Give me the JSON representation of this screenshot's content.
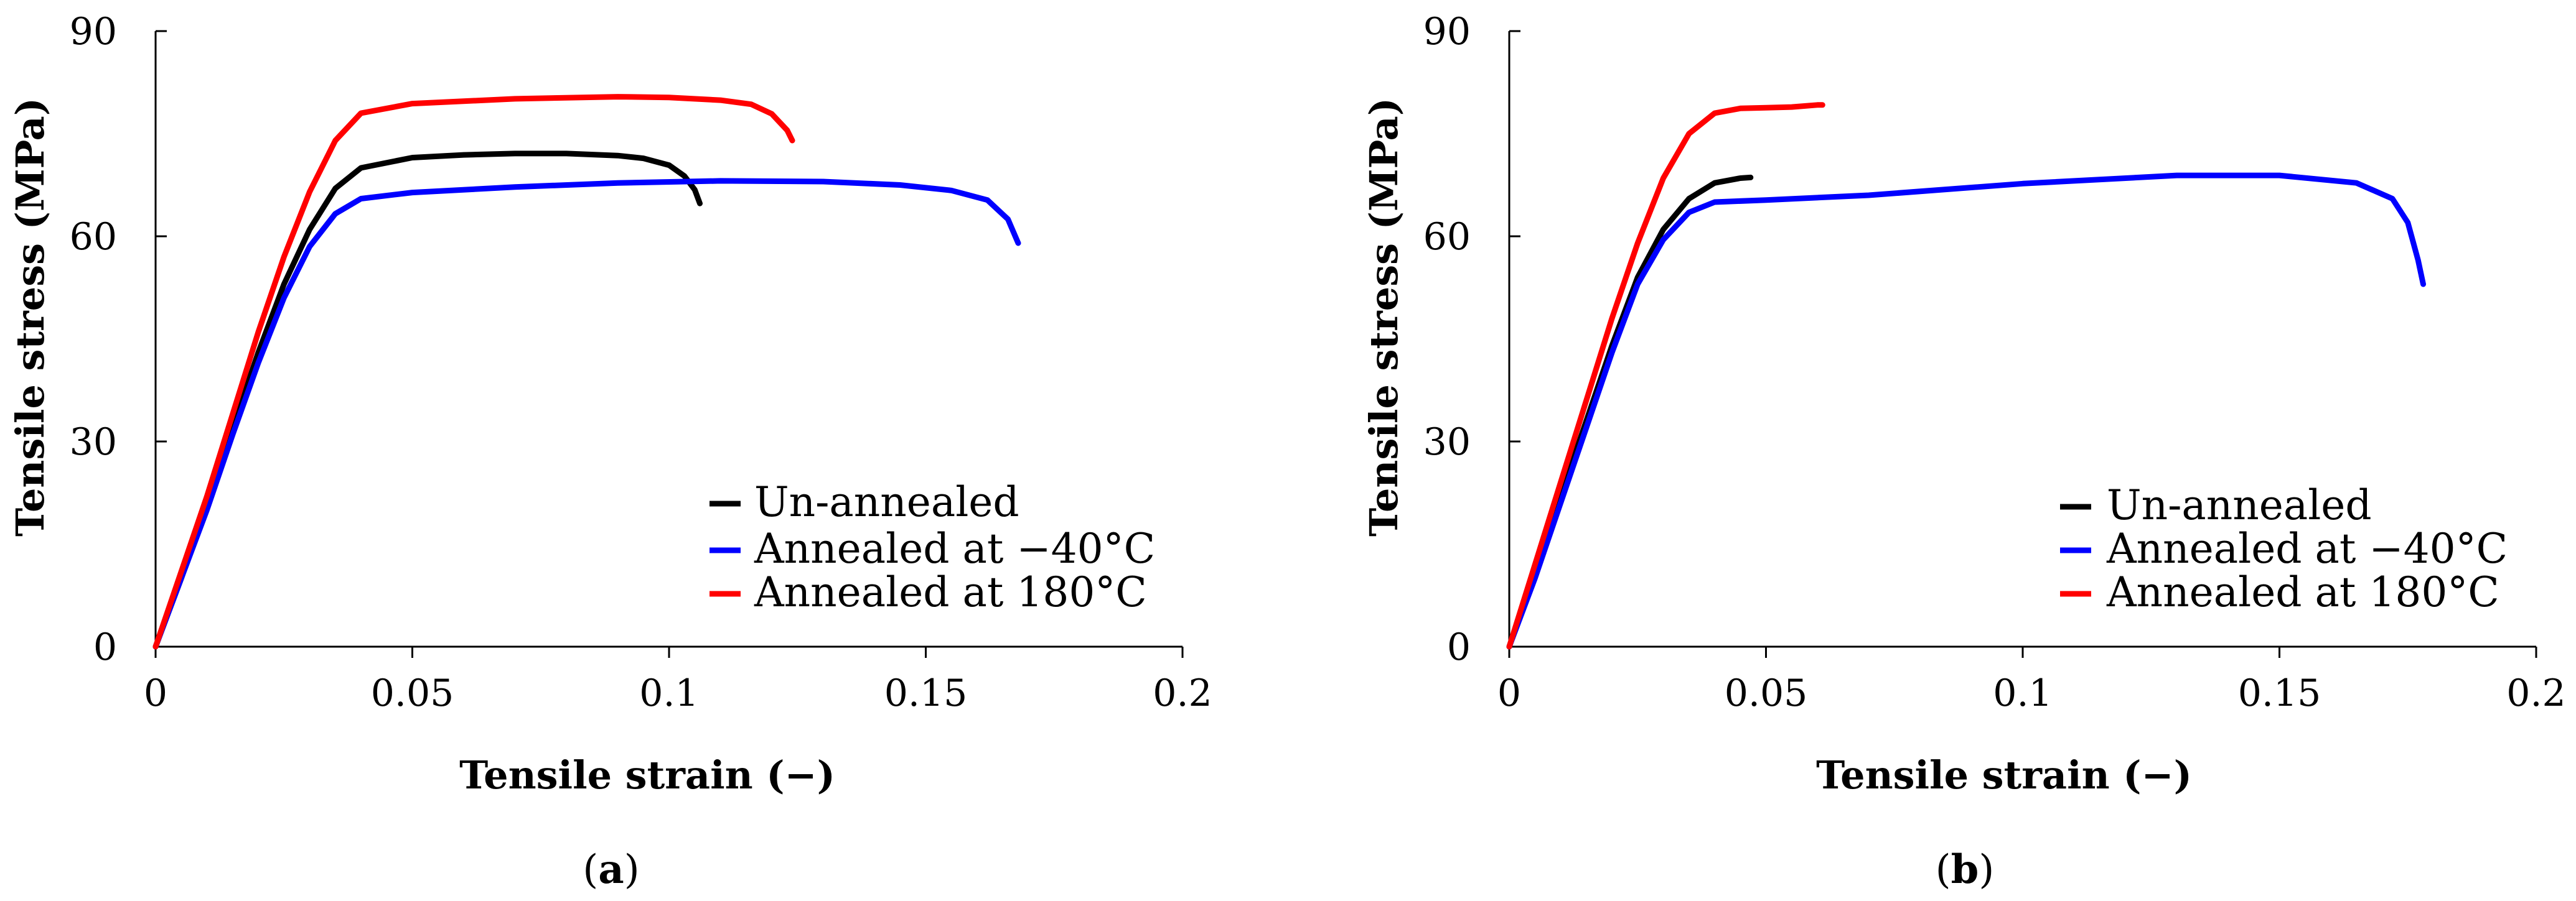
{
  "chart_data": [
    {
      "type": "line",
      "panel": "a",
      "panel_label": "(a)",
      "xlabel": "Tensile strain (−)",
      "ylabel": "Tensile stress (MPa)",
      "xlim": [
        0,
        0.2
      ],
      "ylim": [
        0,
        90
      ],
      "xticks": [
        0,
        0.05,
        0.1,
        0.15,
        0.2
      ],
      "xtick_labels": [
        "0",
        "0.05",
        "0.1",
        "0.15",
        "0.2"
      ],
      "yticks": [
        0,
        30,
        60,
        90
      ],
      "ytick_labels": [
        "0",
        "30",
        "60",
        "90"
      ],
      "legend_position": "bottom-right",
      "series": [
        {
          "name": "Un-annealed",
          "color": "#000000",
          "points": [
            [
              0,
              0
            ],
            [
              0.005,
              10
            ],
            [
              0.01,
              21
            ],
            [
              0.015,
              32
            ],
            [
              0.02,
              43
            ],
            [
              0.025,
              53
            ],
            [
              0.03,
              61
            ],
            [
              0.035,
              67
            ],
            [
              0.04,
              70
            ],
            [
              0.05,
              71.5
            ],
            [
              0.06,
              71.9
            ],
            [
              0.07,
              72.1
            ],
            [
              0.08,
              72.1
            ],
            [
              0.09,
              71.8
            ],
            [
              0.095,
              71.4
            ],
            [
              0.1,
              70.4
            ],
            [
              0.103,
              68.8
            ],
            [
              0.105,
              66.8
            ],
            [
              0.106,
              64.8
            ]
          ]
        },
        {
          "name": "Annealed at −40°C",
          "color": "#0000ff",
          "points": [
            [
              0,
              0
            ],
            [
              0.005,
              10
            ],
            [
              0.01,
              20
            ],
            [
              0.015,
              31
            ],
            [
              0.02,
              41.5
            ],
            [
              0.025,
              51
            ],
            [
              0.03,
              58.5
            ],
            [
              0.035,
              63.3
            ],
            [
              0.04,
              65.5
            ],
            [
              0.05,
              66.4
            ],
            [
              0.07,
              67.2
            ],
            [
              0.09,
              67.8
            ],
            [
              0.11,
              68.1
            ],
            [
              0.13,
              68
            ],
            [
              0.145,
              67.5
            ],
            [
              0.155,
              66.7
            ],
            [
              0.162,
              65.3
            ],
            [
              0.166,
              62.5
            ],
            [
              0.168,
              59
            ]
          ]
        },
        {
          "name": "Annealed at 180°C",
          "color": "#ff0000",
          "points": [
            [
              0,
              0
            ],
            [
              0.005,
              11
            ],
            [
              0.01,
              22
            ],
            [
              0.015,
              34
            ],
            [
              0.02,
              46
            ],
            [
              0.025,
              57
            ],
            [
              0.03,
              66.5
            ],
            [
              0.035,
              74
            ],
            [
              0.04,
              78
            ],
            [
              0.05,
              79.4
            ],
            [
              0.07,
              80.1
            ],
            [
              0.09,
              80.4
            ],
            [
              0.1,
              80.3
            ],
            [
              0.11,
              79.9
            ],
            [
              0.116,
              79.3
            ],
            [
              0.12,
              77.9
            ],
            [
              0.123,
              75.5
            ],
            [
              0.124,
              74
            ]
          ]
        }
      ]
    },
    {
      "type": "line",
      "panel": "b",
      "panel_label": "(b)",
      "xlabel": "Tensile strain (−)",
      "ylabel": "Tensile stress (MPa)",
      "xlim": [
        0,
        0.2
      ],
      "ylim": [
        0,
        90
      ],
      "xticks": [
        0,
        0.05,
        0.1,
        0.15,
        0.2
      ],
      "xtick_labels": [
        "0",
        "0.05",
        "0.1",
        "0.15",
        "0.2"
      ],
      "yticks": [
        0,
        30,
        60,
        90
      ],
      "ytick_labels": [
        "0",
        "30",
        "60",
        "90"
      ],
      "legend_position": "bottom-right",
      "series": [
        {
          "name": "Un-annealed",
          "color": "#000000",
          "points": [
            [
              0,
              0
            ],
            [
              0.005,
              11
            ],
            [
              0.01,
              22
            ],
            [
              0.015,
              33
            ],
            [
              0.02,
              44
            ],
            [
              0.025,
              54
            ],
            [
              0.03,
              61
            ],
            [
              0.035,
              65.5
            ],
            [
              0.04,
              67.8
            ],
            [
              0.045,
              68.5
            ],
            [
              0.047,
              68.6
            ]
          ]
        },
        {
          "name": "Annealed at −40°C",
          "color": "#0000ff",
          "points": [
            [
              0,
              0
            ],
            [
              0.005,
              10
            ],
            [
              0.01,
              21
            ],
            [
              0.015,
              32
            ],
            [
              0.02,
              43
            ],
            [
              0.025,
              53
            ],
            [
              0.03,
              59.5
            ],
            [
              0.035,
              63.5
            ],
            [
              0.04,
              65
            ],
            [
              0.05,
              65.3
            ],
            [
              0.07,
              66
            ],
            [
              0.1,
              67.7
            ],
            [
              0.13,
              68.9
            ],
            [
              0.15,
              68.9
            ],
            [
              0.165,
              67.8
            ],
            [
              0.172,
              65.5
            ],
            [
              0.175,
              62
            ],
            [
              0.177,
              56.5
            ],
            [
              0.178,
              53
            ]
          ]
        },
        {
          "name": "Annealed at 180°C",
          "color": "#ff0000",
          "points": [
            [
              0,
              0
            ],
            [
              0.005,
              12
            ],
            [
              0.01,
              24
            ],
            [
              0.015,
              36
            ],
            [
              0.02,
              48
            ],
            [
              0.025,
              59
            ],
            [
              0.03,
              68.5
            ],
            [
              0.035,
              75
            ],
            [
              0.04,
              78
            ],
            [
              0.045,
              78.7
            ],
            [
              0.05,
              78.8
            ],
            [
              0.055,
              78.9
            ],
            [
              0.06,
              79.2
            ],
            [
              0.061,
              79.2
            ]
          ]
        }
      ]
    }
  ]
}
